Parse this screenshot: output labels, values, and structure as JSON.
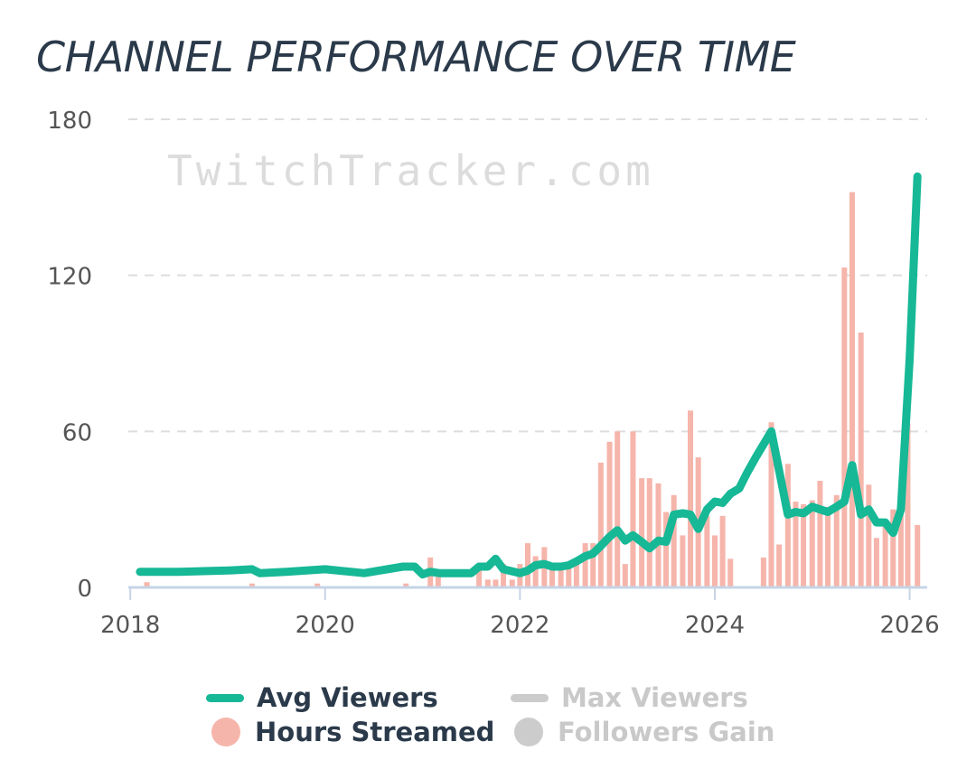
{
  "chart_data": {
    "type": "bar+line",
    "title": "CHANNEL PERFORMANCE OVER TIME",
    "watermark": "TwitchTracker.com",
    "y_ticks": [
      "0",
      "60",
      "120",
      "180"
    ],
    "ylim": [
      0,
      180
    ],
    "x_ticks": [
      "2018",
      "2020",
      "2022",
      "2024",
      "2026"
    ],
    "x_tick_values": [
      2018,
      2020,
      2022,
      2024,
      2026
    ],
    "xlim": [
      2017.98,
      2026.18
    ],
    "colors": {
      "line": "#16b896",
      "bars": "#f6b5ab",
      "grid": "#dddddd",
      "axis": "#c6d4e6",
      "inactive": "#cccccc",
      "text": "#555555"
    },
    "series": [
      {
        "name": "Hours Streamed",
        "type": "bar",
        "points": [
          [
            2018.17,
            2
          ],
          [
            2019.25,
            1.5
          ],
          [
            2019.92,
            1.5
          ],
          [
            2020.83,
            1.5
          ],
          [
            2021.08,
            11.5
          ],
          [
            2021.16,
            4
          ],
          [
            2021.58,
            6.5
          ],
          [
            2021.67,
            3
          ],
          [
            2021.75,
            3
          ],
          [
            2021.83,
            9
          ],
          [
            2021.92,
            3
          ],
          [
            2022.0,
            9
          ],
          [
            2022.08,
            17
          ],
          [
            2022.16,
            12
          ],
          [
            2022.25,
            15.5
          ],
          [
            2022.33,
            8
          ],
          [
            2022.42,
            8
          ],
          [
            2022.5,
            8
          ],
          [
            2022.58,
            11
          ],
          [
            2022.67,
            17
          ],
          [
            2022.75,
            17
          ],
          [
            2022.83,
            48
          ],
          [
            2022.92,
            56
          ],
          [
            2023.0,
            60
          ],
          [
            2023.08,
            9
          ],
          [
            2023.16,
            60
          ],
          [
            2023.25,
            42
          ],
          [
            2023.33,
            42
          ],
          [
            2023.42,
            40
          ],
          [
            2023.5,
            29
          ],
          [
            2023.58,
            35.5
          ],
          [
            2023.67,
            20
          ],
          [
            2023.75,
            68
          ],
          [
            2023.83,
            50
          ],
          [
            2023.92,
            27.5
          ],
          [
            2024.0,
            20
          ],
          [
            2024.08,
            27.5
          ],
          [
            2024.16,
            11
          ],
          [
            2024.5,
            11.5
          ],
          [
            2024.58,
            63.5
          ],
          [
            2024.66,
            16.5
          ],
          [
            2024.75,
            47.5
          ],
          [
            2024.83,
            33
          ],
          [
            2024.91,
            32
          ],
          [
            2025.0,
            33.5
          ],
          [
            2025.08,
            41
          ],
          [
            2025.16,
            31
          ],
          [
            2025.25,
            35.5
          ],
          [
            2025.33,
            123
          ],
          [
            2025.41,
            152
          ],
          [
            2025.5,
            98
          ],
          [
            2025.58,
            39.5
          ],
          [
            2025.66,
            19
          ],
          [
            2025.75,
            24
          ],
          [
            2025.83,
            30
          ],
          [
            2025.91,
            31
          ],
          [
            2025.98,
            63
          ],
          [
            2026.08,
            24
          ]
        ]
      },
      {
        "name": "Avg Viewers",
        "type": "line",
        "points": [
          [
            2018.1,
            6
          ],
          [
            2018.5,
            6
          ],
          [
            2019.0,
            6.5
          ],
          [
            2019.25,
            7
          ],
          [
            2019.33,
            5.5
          ],
          [
            2019.6,
            6
          ],
          [
            2020.0,
            7
          ],
          [
            2020.4,
            5.5
          ],
          [
            2020.8,
            8
          ],
          [
            2020.92,
            8
          ],
          [
            2021.0,
            5
          ],
          [
            2021.08,
            6
          ],
          [
            2021.17,
            5.5
          ],
          [
            2021.5,
            5.5
          ],
          [
            2021.58,
            8
          ],
          [
            2021.67,
            8
          ],
          [
            2021.75,
            11
          ],
          [
            2021.83,
            7
          ],
          [
            2022.0,
            5.5
          ],
          [
            2022.08,
            6.5
          ],
          [
            2022.16,
            8.5
          ],
          [
            2022.25,
            9
          ],
          [
            2022.33,
            8
          ],
          [
            2022.42,
            8
          ],
          [
            2022.5,
            8.5
          ],
          [
            2022.58,
            10
          ],
          [
            2022.67,
            12
          ],
          [
            2022.75,
            13
          ],
          [
            2022.83,
            16
          ],
          [
            2022.92,
            19.5
          ],
          [
            2023.0,
            22
          ],
          [
            2023.08,
            18
          ],
          [
            2023.16,
            20
          ],
          [
            2023.25,
            17.5
          ],
          [
            2023.33,
            15
          ],
          [
            2023.42,
            18
          ],
          [
            2023.5,
            17.5
          ],
          [
            2023.58,
            28
          ],
          [
            2023.67,
            28.5
          ],
          [
            2023.75,
            28
          ],
          [
            2023.83,
            22.5
          ],
          [
            2023.92,
            30
          ],
          [
            2024.0,
            33
          ],
          [
            2024.08,
            32.5
          ],
          [
            2024.16,
            36
          ],
          [
            2024.25,
            38
          ],
          [
            2024.33,
            44
          ],
          [
            2024.42,
            50
          ],
          [
            2024.5,
            55
          ],
          [
            2024.58,
            60
          ],
          [
            2024.66,
            45
          ],
          [
            2024.75,
            28
          ],
          [
            2024.83,
            29
          ],
          [
            2024.91,
            28.5
          ],
          [
            2025.0,
            31
          ],
          [
            2025.08,
            30
          ],
          [
            2025.16,
            29
          ],
          [
            2025.25,
            31
          ],
          [
            2025.33,
            33
          ],
          [
            2025.41,
            47
          ],
          [
            2025.5,
            28
          ],
          [
            2025.58,
            30
          ],
          [
            2025.66,
            25
          ],
          [
            2025.75,
            25
          ],
          [
            2025.83,
            21
          ],
          [
            2025.91,
            30
          ],
          [
            2026.0,
            88
          ],
          [
            2026.08,
            158
          ]
        ]
      }
    ],
    "legend": [
      {
        "name": "Avg Viewers",
        "shape": "line",
        "active": true
      },
      {
        "name": "Max Viewers",
        "shape": "line",
        "active": false
      },
      {
        "name": "Hours Streamed",
        "shape": "dot",
        "active": true
      },
      {
        "name": "Followers Gain",
        "shape": "dot",
        "active": false
      }
    ]
  }
}
